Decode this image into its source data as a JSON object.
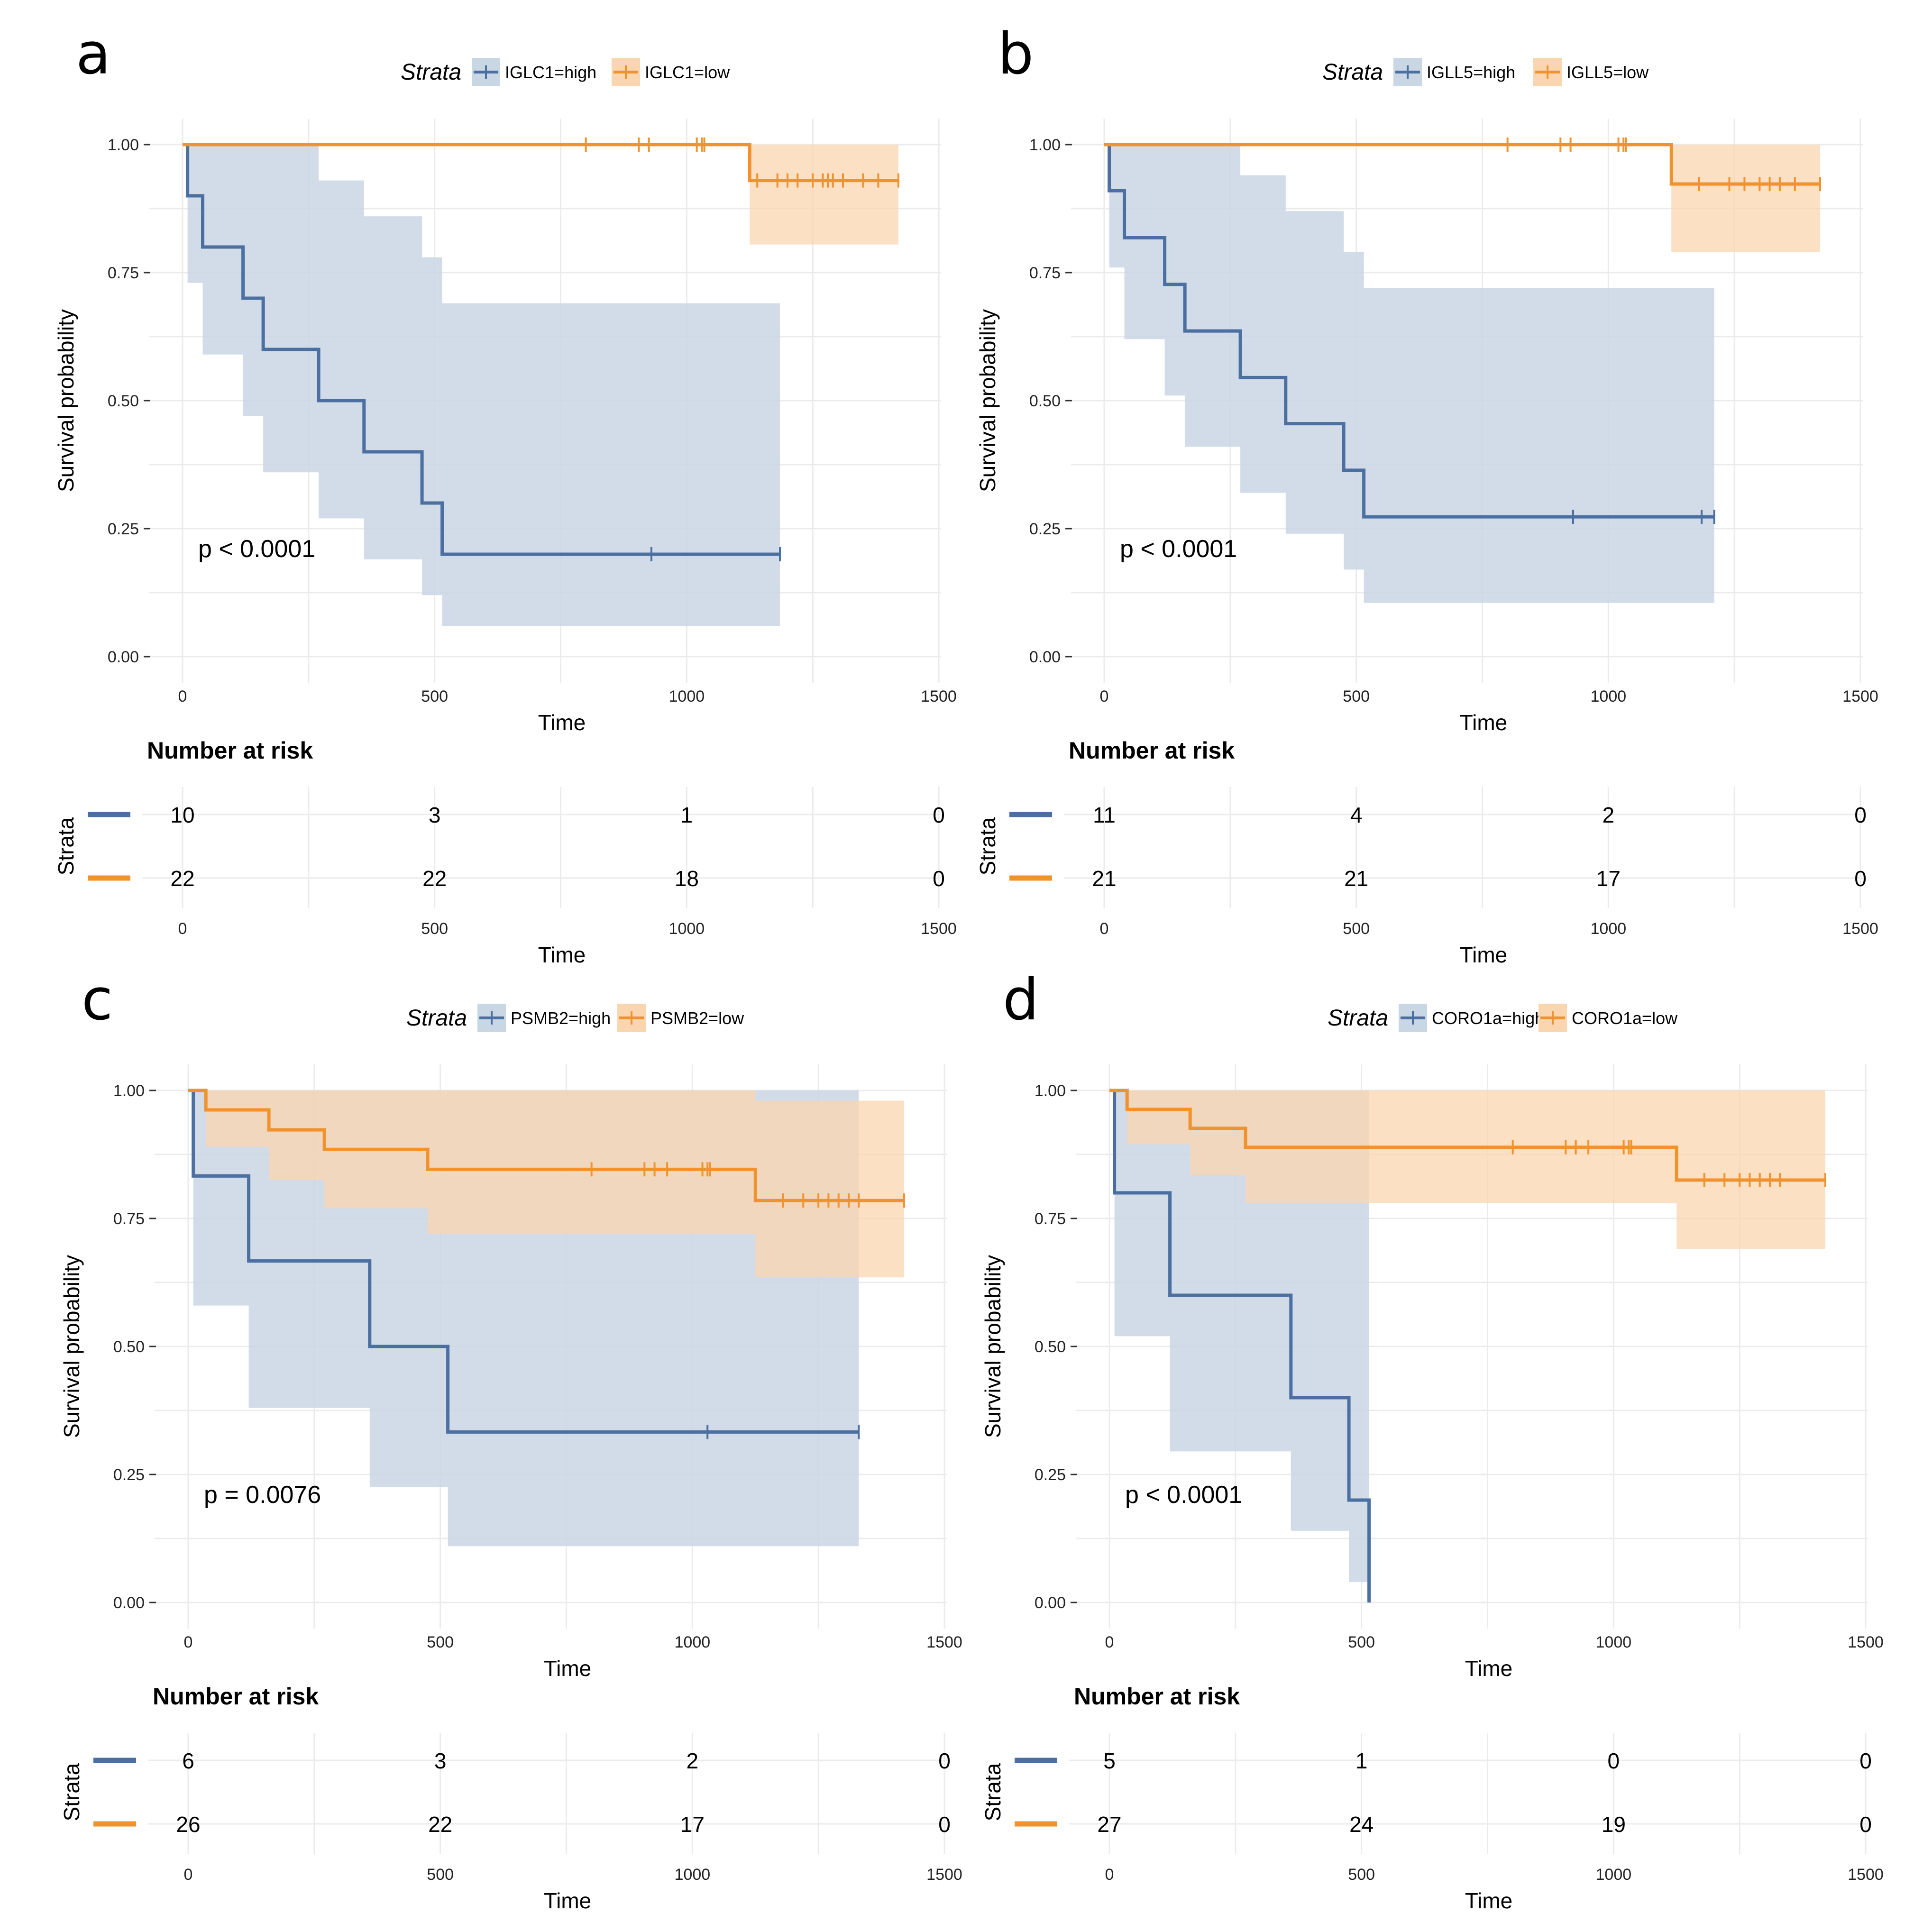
{
  "figure": {
    "colors": {
      "high": "#4a6fa0",
      "low": "#f0922e",
      "high_fill": "#c9d6e4",
      "low_fill": "#f9d6b0"
    },
    "legend_title": "Strata",
    "x_axis_label": "Time",
    "y_axis_label": "Survival probability",
    "risk_title": "Number at risk",
    "risk_y_label": "Strata"
  },
  "chart_data": [
    {
      "panel": "a",
      "type": "line",
      "subtype": "kaplan-meier",
      "legend": [
        "IGLC1=high",
        "IGLC1=low"
      ],
      "xlabel": "Time",
      "ylabel": "Survival probability",
      "xlim": [
        0,
        1500
      ],
      "ylim": [
        0,
        1
      ],
      "x_ticks": [
        "0",
        "500",
        "1000",
        "1500"
      ],
      "y_ticks": [
        "0.00",
        "0.25",
        "0.50",
        "0.75",
        "1.00"
      ],
      "pvalue": "p < 0.0001",
      "series": [
        {
          "name": "IGLC1=high",
          "steps": [
            [
              0,
              1.0
            ],
            [
              10,
              0.9
            ],
            [
              40,
              0.8
            ],
            [
              120,
              0.7
            ],
            [
              160,
              0.6
            ],
            [
              270,
              0.5
            ],
            [
              360,
              0.4
            ],
            [
              475,
              0.3
            ],
            [
              515,
              0.2
            ]
          ],
          "end": 1185,
          "censors": [
            930,
            1185
          ],
          "ci": [
            [
              0,
              1.0,
              1.0
            ],
            [
              10,
              1.0,
              0.73
            ],
            [
              40,
              1.0,
              0.59
            ],
            [
              120,
              1.0,
              0.47
            ],
            [
              160,
              1.0,
              0.36
            ],
            [
              270,
              0.93,
              0.27
            ],
            [
              360,
              0.86,
              0.19
            ],
            [
              475,
              0.78,
              0.12
            ],
            [
              515,
              0.69,
              0.06
            ]
          ]
        },
        {
          "name": "IGLC1=low",
          "steps": [
            [
              0,
              1.0
            ],
            [
              1125,
              0.93
            ]
          ],
          "end": 1420,
          "censors": [
            800,
            905,
            925,
            1020,
            1030,
            1035,
            1140,
            1180,
            1200,
            1220,
            1250,
            1270,
            1280,
            1290,
            1310,
            1350,
            1380,
            1420
          ],
          "ci": [
            [
              0,
              1.0,
              1.0
            ],
            [
              1125,
              1.0,
              0.805
            ]
          ]
        }
      ],
      "risk": {
        "x_ticks": [
          "0",
          "500",
          "1000",
          "1500"
        ],
        "xlabel": "Time",
        "rows": [
          {
            "name": "IGLC1=high",
            "values": [
              "10",
              "3",
              "1",
              "0"
            ]
          },
          {
            "name": "IGLC1=low",
            "values": [
              "22",
              "22",
              "18",
              "0"
            ]
          }
        ]
      }
    },
    {
      "panel": "b",
      "type": "line",
      "subtype": "kaplan-meier",
      "legend": [
        "IGLL5=high",
        "IGLL5=low"
      ],
      "xlabel": "Time",
      "ylabel": "Survival probability",
      "xlim": [
        0,
        1500
      ],
      "ylim": [
        0,
        1
      ],
      "x_ticks": [
        "0",
        "500",
        "1000",
        "1500"
      ],
      "y_ticks": [
        "0.00",
        "0.25",
        "0.50",
        "0.75",
        "1.00"
      ],
      "pvalue": "p < 0.0001",
      "series": [
        {
          "name": "IGLL5=high",
          "steps": [
            [
              0,
              1.0
            ],
            [
              10,
              0.91
            ],
            [
              40,
              0.818
            ],
            [
              120,
              0.727
            ],
            [
              160,
              0.636
            ],
            [
              270,
              0.545
            ],
            [
              360,
              0.455
            ],
            [
              475,
              0.364
            ],
            [
              515,
              0.273
            ]
          ],
          "end": 1210,
          "censors": [
            930,
            1185,
            1210
          ],
          "ci": [
            [
              0,
              1.0,
              1.0
            ],
            [
              10,
              1.0,
              0.76
            ],
            [
              40,
              1.0,
              0.62
            ],
            [
              120,
              1.0,
              0.51
            ],
            [
              160,
              1.0,
              0.41
            ],
            [
              270,
              0.94,
              0.32
            ],
            [
              360,
              0.87,
              0.24
            ],
            [
              475,
              0.79,
              0.17
            ],
            [
              515,
              0.72,
              0.105
            ]
          ]
        },
        {
          "name": "IGLL5=low",
          "steps": [
            [
              0,
              1.0
            ],
            [
              1125,
              0.923
            ]
          ],
          "end": 1420,
          "censors": [
            800,
            905,
            925,
            1020,
            1030,
            1035,
            1180,
            1240,
            1270,
            1300,
            1320,
            1340,
            1370,
            1420
          ],
          "ci": [
            [
              0,
              1.0,
              1.0
            ],
            [
              1125,
              1.0,
              0.79
            ]
          ]
        }
      ],
      "risk": {
        "x_ticks": [
          "0",
          "500",
          "1000",
          "1500"
        ],
        "xlabel": "Time",
        "rows": [
          {
            "name": "IGLL5=high",
            "values": [
              "11",
              "4",
              "2",
              "0"
            ]
          },
          {
            "name": "IGLL5=low",
            "values": [
              "21",
              "21",
              "17",
              "0"
            ]
          }
        ]
      }
    },
    {
      "panel": "c",
      "type": "line",
      "subtype": "kaplan-meier",
      "legend": [
        "PSMB2=high",
        "PSMB2=low"
      ],
      "xlabel": "Time",
      "ylabel": "Survival probability",
      "xlim": [
        0,
        1500
      ],
      "ylim": [
        0,
        1
      ],
      "x_ticks": [
        "0",
        "500",
        "1000",
        "1500"
      ],
      "y_ticks": [
        "0.00",
        "0.25",
        "0.50",
        "0.75",
        "1.00"
      ],
      "pvalue": "p = 0.0076",
      "series": [
        {
          "name": "PSMB2=high",
          "steps": [
            [
              0,
              1.0
            ],
            [
              10,
              0.833
            ],
            [
              120,
              0.667
            ],
            [
              360,
              0.5
            ],
            [
              515,
              0.333
            ]
          ],
          "end": 1330,
          "censors": [
            1030,
            1330
          ],
          "ci": [
            [
              0,
              1.0,
              1.0
            ],
            [
              10,
              1.0,
              0.58
            ],
            [
              120,
              1.0,
              0.38
            ],
            [
              360,
              1.0,
              0.225
            ],
            [
              515,
              1.0,
              0.11
            ]
          ]
        },
        {
          "name": "PSMB2=low",
          "steps": [
            [
              0,
              1.0
            ],
            [
              35,
              0.962
            ],
            [
              160,
              0.923
            ],
            [
              270,
              0.885
            ],
            [
              475,
              0.846
            ],
            [
              1125,
              0.785
            ]
          ],
          "end": 1420,
          "censors": [
            800,
            905,
            925,
            950,
            1020,
            1030,
            1035,
            1180,
            1220,
            1250,
            1270,
            1290,
            1310,
            1330,
            1420
          ],
          "ci": [
            [
              0,
              1.0,
              1.0
            ],
            [
              35,
              1.0,
              0.89
            ],
            [
              160,
              1.0,
              0.825
            ],
            [
              270,
              1.0,
              0.77
            ],
            [
              475,
              1.0,
              0.72
            ],
            [
              1125,
              0.98,
              0.635
            ]
          ]
        }
      ],
      "risk": {
        "x_ticks": [
          "0",
          "500",
          "1000",
          "1500"
        ],
        "xlabel": "Time",
        "rows": [
          {
            "name": "PSMB2=high",
            "values": [
              "6",
              "3",
              "2",
              "0"
            ]
          },
          {
            "name": "PSMB2=low",
            "values": [
              "26",
              "22",
              "17",
              "0"
            ]
          }
        ]
      }
    },
    {
      "panel": "d",
      "type": "line",
      "subtype": "kaplan-meier",
      "legend": [
        "CORO1a=high",
        "CORO1a=low"
      ],
      "xlabel": "Time",
      "ylabel": "Survival probability",
      "xlim": [
        0,
        1500
      ],
      "ylim": [
        0,
        1
      ],
      "x_ticks": [
        "0",
        "500",
        "1000",
        "1500"
      ],
      "y_ticks": [
        "0.00",
        "0.25",
        "0.50",
        "0.75",
        "1.00"
      ],
      "pvalue": "p < 0.0001",
      "series": [
        {
          "name": "CORO1a=high",
          "steps": [
            [
              0,
              1.0
            ],
            [
              10,
              0.8
            ],
            [
              120,
              0.6
            ],
            [
              360,
              0.4
            ],
            [
              475,
              0.2
            ],
            [
              515,
              0.0
            ]
          ],
          "end": 515,
          "censors": [],
          "ci": [
            [
              0,
              1.0,
              1.0
            ],
            [
              10,
              1.0,
              0.52
            ],
            [
              120,
              1.0,
              0.295
            ],
            [
              360,
              1.0,
              0.14
            ],
            [
              475,
              1.0,
              0.04
            ]
          ]
        },
        {
          "name": "CORO1a=low",
          "steps": [
            [
              0,
              1.0
            ],
            [
              35,
              0.963
            ],
            [
              160,
              0.926
            ],
            [
              270,
              0.889
            ],
            [
              1125,
              0.825
            ]
          ],
          "end": 1420,
          "censors": [
            800,
            905,
            925,
            950,
            1020,
            1030,
            1035,
            1180,
            1220,
            1250,
            1270,
            1290,
            1310,
            1330,
            1420
          ],
          "ci": [
            [
              0,
              1.0,
              1.0
            ],
            [
              35,
              1.0,
              0.895
            ],
            [
              160,
              1.0,
              0.835
            ],
            [
              270,
              1.0,
              0.78
            ],
            [
              1125,
              1.0,
              0.69
            ]
          ]
        }
      ],
      "risk": {
        "x_ticks": [
          "0",
          "500",
          "1000",
          "1500"
        ],
        "xlabel": "Time",
        "rows": [
          {
            "name": "CORO1a=high",
            "values": [
              "5",
              "1",
              "0",
              "0"
            ]
          },
          {
            "name": "CORO1a=low",
            "values": [
              "27",
              "24",
              "19",
              "0"
            ]
          }
        ]
      }
    }
  ]
}
